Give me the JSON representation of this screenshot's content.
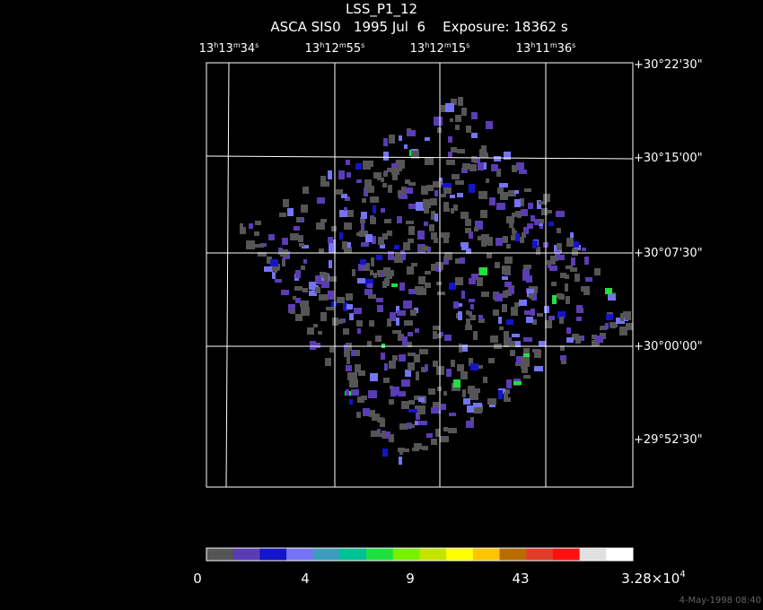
{
  "header": {
    "title": "LSS_P1_12",
    "subtitle": "ASCA SIS0   1995 Jul  6    Exposure: 18362 s"
  },
  "ra_labels": [
    [
      "13",
      "h",
      "13",
      "m",
      "34",
      "s"
    ],
    [
      "13",
      "h",
      "12",
      "m",
      "55",
      "s"
    ],
    [
      "13",
      "h",
      "12",
      "m",
      "15",
      "s"
    ],
    [
      "13",
      "h",
      "11",
      "m",
      "36",
      "s"
    ]
  ],
  "dec_labels": [
    "+30°22'30\"",
    "+30°15'00\"",
    "+30°07'30\"",
    "+30°00'00\"",
    "+29°52'30\""
  ],
  "colorbar": {
    "colors": [
      "#555555",
      "#5a3cb4",
      "#1414c8",
      "#7474f4",
      "#3c9cbc",
      "#00c094",
      "#20e040",
      "#78f000",
      "#c4e400",
      "#ffff00",
      "#ffc400",
      "#b86c00",
      "#e03c28",
      "#ff1010",
      "#e0e0e0",
      "#ffffff"
    ],
    "labels": [
      "0",
      "4",
      "9",
      "43",
      {
        "mantissa": "3.28×10",
        "exponent": "4"
      }
    ]
  },
  "footer": "4-May-1998 08:40"
}
